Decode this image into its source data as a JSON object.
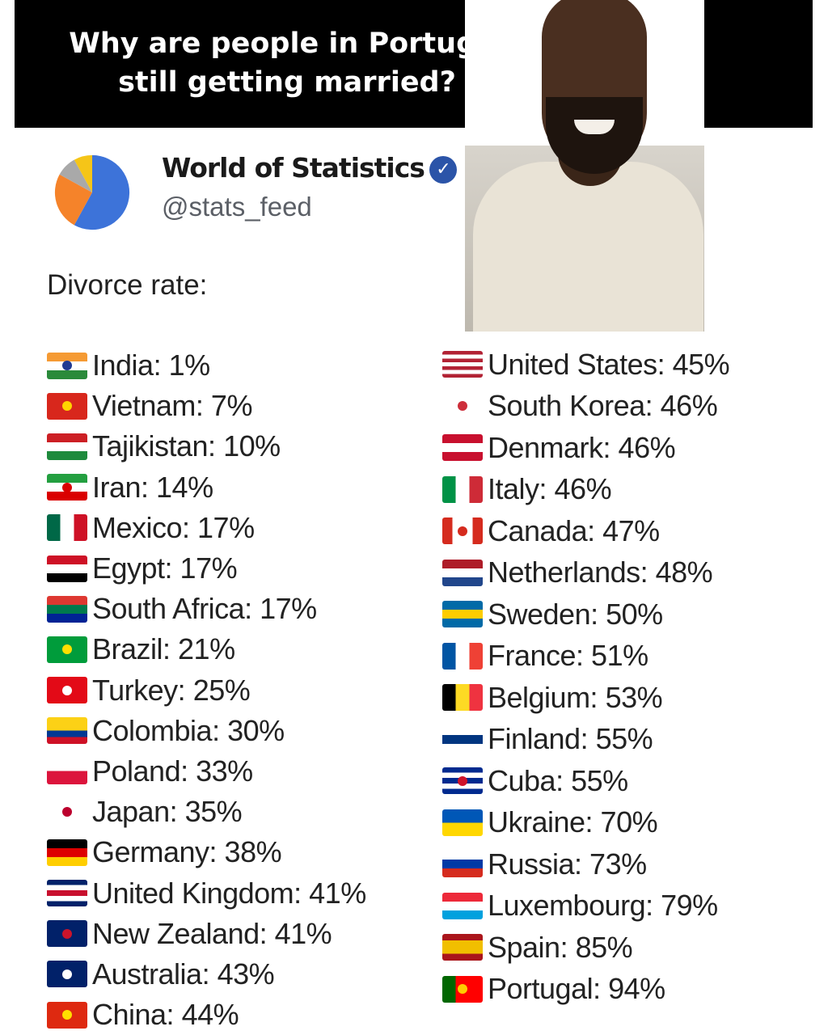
{
  "headline": "Why are people in Portugal still getting married?",
  "account": {
    "name": "World of Statistics",
    "handle": "@stats_feed",
    "verified": true,
    "avatar_colors": [
      "#3d73d9",
      "#f5832a",
      "#a9a9a9",
      "#f5c518"
    ]
  },
  "label": "Divorce rate:",
  "left": [
    {
      "text": "India: 1%",
      "flag": {
        "dir": "h",
        "colors": [
          "#f59a33",
          "#ffffff",
          "#2a8a3a"
        ],
        "dot": "#1f3a93"
      }
    },
    {
      "text": "Vietnam: 7%",
      "flag": {
        "dir": "h",
        "colors": [
          "#d8271c"
        ],
        "dot": "#ffd400"
      }
    },
    {
      "text": "Tajikistan: 10%",
      "flag": {
        "dir": "h",
        "colors": [
          "#cc1f24",
          "#ffffff",
          "#1e8a3c"
        ]
      }
    },
    {
      "text": "Iran: 14%",
      "flag": {
        "dir": "h",
        "colors": [
          "#239f40",
          "#ffffff",
          "#da0000"
        ],
        "dot": "#da0000"
      }
    },
    {
      "text": "Mexico: 17%",
      "flag": {
        "dir": "v",
        "colors": [
          "#006847",
          "#ffffff",
          "#ce1126"
        ]
      }
    },
    {
      "text": "Egypt: 17%",
      "flag": {
        "dir": "h",
        "colors": [
          "#ce1126",
          "#ffffff",
          "#000000"
        ]
      }
    },
    {
      "text": "South Africa: 17%",
      "flag": {
        "dir": "h",
        "colors": [
          "#de3831",
          "#007a4d",
          "#002395"
        ]
      }
    },
    {
      "text": "Brazil: 21%",
      "flag": {
        "dir": "h",
        "colors": [
          "#009c3b"
        ],
        "dot": "#ffdf00"
      }
    },
    {
      "text": "Turkey: 25%",
      "flag": {
        "dir": "h",
        "colors": [
          "#e30a17"
        ],
        "dot": "#ffffff"
      }
    },
    {
      "text": "Colombia: 30%",
      "flag": {
        "dir": "h",
        "colors": [
          "#fcd116",
          "#fcd116",
          "#003893",
          "#ce1126"
        ]
      }
    },
    {
      "text": "Poland: 33%",
      "flag": {
        "dir": "h",
        "colors": [
          "#ffffff",
          "#dc143c"
        ]
      }
    },
    {
      "text": "Japan: 35%",
      "flag": {
        "dir": "h",
        "colors": [
          "#ffffff"
        ],
        "dot": "#bc002d"
      }
    },
    {
      "text": "Germany: 38%",
      "flag": {
        "dir": "h",
        "colors": [
          "#000000",
          "#dd0000",
          "#ffce00"
        ]
      }
    },
    {
      "text": "United Kingdom: 41%",
      "flag": {
        "dir": "h",
        "colors": [
          "#012169",
          "#ffffff",
          "#c8102e",
          "#ffffff",
          "#012169"
        ]
      }
    },
    {
      "text": "New Zealand: 41%",
      "flag": {
        "dir": "h",
        "colors": [
          "#012169"
        ],
        "dot": "#cc142b"
      }
    },
    {
      "text": "Australia: 43%",
      "flag": {
        "dir": "h",
        "colors": [
          "#012169"
        ],
        "dot": "#ffffff"
      }
    },
    {
      "text": "China: 44%",
      "flag": {
        "dir": "h",
        "colors": [
          "#de2910"
        ],
        "dot": "#ffde00"
      }
    }
  ],
  "right": [
    {
      "text": "United States: 45%",
      "flag": {
        "dir": "h",
        "colors": [
          "#b22234",
          "#ffffff",
          "#b22234",
          "#ffffff",
          "#b22234",
          "#ffffff",
          "#b22234"
        ]
      }
    },
    {
      "text": "South Korea: 46%",
      "flag": {
        "dir": "h",
        "colors": [
          "#ffffff"
        ],
        "dot": "#cd2e3a"
      }
    },
    {
      "text": "Denmark: 46%",
      "flag": {
        "dir": "h",
        "colors": [
          "#c8102e",
          "#ffffff",
          "#c8102e"
        ]
      }
    },
    {
      "text": "Italy: 46%",
      "flag": {
        "dir": "v",
        "colors": [
          "#009246",
          "#ffffff",
          "#ce2b37"
        ]
      }
    },
    {
      "text": "Canada: 47%",
      "flag": {
        "dir": "v",
        "colors": [
          "#d52b1e",
          "#ffffff",
          "#ffffff",
          "#d52b1e"
        ],
        "dot": "#d52b1e"
      }
    },
    {
      "text": "Netherlands: 48%",
      "flag": {
        "dir": "h",
        "colors": [
          "#ae1c28",
          "#ffffff",
          "#21468b"
        ]
      }
    },
    {
      "text": "Sweden: 50%",
      "flag": {
        "dir": "h",
        "colors": [
          "#006aa7",
          "#fecc00",
          "#006aa7"
        ]
      }
    },
    {
      "text": "France: 51%",
      "flag": {
        "dir": "v",
        "colors": [
          "#0055a4",
          "#ffffff",
          "#ef4135"
        ]
      }
    },
    {
      "text": "Belgium: 53%",
      "flag": {
        "dir": "v",
        "colors": [
          "#000000",
          "#fdda24",
          "#ef3340"
        ]
      }
    },
    {
      "text": "Finland: 55%",
      "flag": {
        "dir": "h",
        "colors": [
          "#ffffff",
          "#003580",
          "#ffffff"
        ]
      }
    },
    {
      "text": "Cuba: 55%",
      "flag": {
        "dir": "h",
        "colors": [
          "#002a8f",
          "#ffffff",
          "#002a8f",
          "#ffffff",
          "#002a8f"
        ],
        "dot": "#cf142b"
      }
    },
    {
      "text": "Ukraine: 70%",
      "flag": {
        "dir": "h",
        "colors": [
          "#0057b7",
          "#ffd700"
        ]
      }
    },
    {
      "text": "Russia: 73%",
      "flag": {
        "dir": "h",
        "colors": [
          "#ffffff",
          "#0039a6",
          "#d52b1e"
        ]
      }
    },
    {
      "text": "Luxembourg: 79%",
      "flag": {
        "dir": "h",
        "colors": [
          "#ed2939",
          "#ffffff",
          "#00a1de"
        ]
      }
    },
    {
      "text": "Spain: 85%",
      "flag": {
        "dir": "h",
        "colors": [
          "#aa151b",
          "#f1bf00",
          "#f1bf00",
          "#aa151b"
        ]
      }
    },
    {
      "text": "Portugal: 94%",
      "flag": {
        "dir": "v",
        "colors": [
          "#006600",
          "#ff0000",
          "#ff0000"
        ],
        "dot": "#ffcc00"
      }
    }
  ]
}
